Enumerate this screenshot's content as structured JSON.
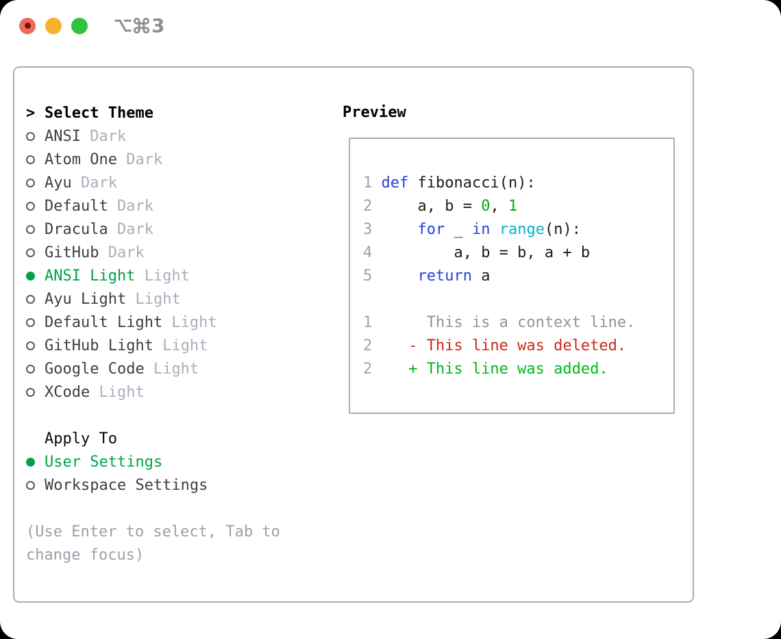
{
  "titlebar": {
    "shortcut_symbols": [
      "option",
      "command"
    ],
    "shortcut_number": "3"
  },
  "menu": {
    "header": {
      "marker": ">",
      "label": "Select Theme"
    },
    "themes": [
      {
        "name": "ANSI",
        "variant": "Dark",
        "selected": false
      },
      {
        "name": "Atom One",
        "variant": "Dark",
        "selected": false
      },
      {
        "name": "Ayu",
        "variant": "Dark",
        "selected": false
      },
      {
        "name": "Default",
        "variant": "Dark",
        "selected": false
      },
      {
        "name": "Dracula",
        "variant": "Dark",
        "selected": false
      },
      {
        "name": "GitHub",
        "variant": "Dark",
        "selected": false
      },
      {
        "name": "ANSI Light",
        "variant": "Light",
        "selected": true
      },
      {
        "name": "Ayu Light",
        "variant": "Light",
        "selected": false
      },
      {
        "name": "Default Light",
        "variant": "Light",
        "selected": false
      },
      {
        "name": "GitHub Light",
        "variant": "Light",
        "selected": false
      },
      {
        "name": "Google Code",
        "variant": "Light",
        "selected": false
      },
      {
        "name": "XCode",
        "variant": "Light",
        "selected": false
      }
    ],
    "apply_to": {
      "label": "Apply To",
      "options": [
        {
          "name": "User Settings",
          "selected": true
        },
        {
          "name": "Workspace Settings",
          "selected": false
        }
      ]
    },
    "help_lines": [
      "(Use Enter to select, Tab to",
      "change focus)"
    ]
  },
  "preview": {
    "title": "Preview",
    "code_lines": [
      {
        "num": "1",
        "tokens": [
          [
            " ",
            "fg"
          ],
          [
            "def",
            "kw"
          ],
          [
            " fibonacci(n):",
            "fg"
          ]
        ]
      },
      {
        "num": "2",
        "tokens": [
          [
            "     a, b = ",
            "fg"
          ],
          [
            "0",
            "num"
          ],
          [
            ", ",
            "fg"
          ],
          [
            "1",
            "num"
          ]
        ]
      },
      {
        "num": "3",
        "tokens": [
          [
            "     ",
            "fg"
          ],
          [
            "for",
            "kw"
          ],
          [
            " _ ",
            "fg"
          ],
          [
            "in",
            "kw"
          ],
          [
            " ",
            "fg"
          ],
          [
            "range",
            "fn"
          ],
          [
            "(n):",
            "fg"
          ]
        ]
      },
      {
        "num": "4",
        "tokens": [
          [
            "         a, b = b, a + b",
            "fg"
          ]
        ]
      },
      {
        "num": "5",
        "tokens": [
          [
            "     ",
            "fg"
          ],
          [
            "return",
            "kw"
          ],
          [
            " a",
            "fg"
          ]
        ]
      }
    ],
    "diff_lines": [
      {
        "num": "1",
        "tokens": [
          [
            "      This is a context line.",
            "ctx"
          ]
        ]
      },
      {
        "num": "2",
        "tokens": [
          [
            "    - This line was deleted.",
            "del"
          ]
        ]
      },
      {
        "num": "2",
        "tokens": [
          [
            "    + This line was added.",
            "add"
          ]
        ]
      }
    ]
  },
  "colors": {
    "accent_green": "#00a248",
    "keyword_blue": "#2441dd",
    "function_cyan": "#00b5c8",
    "number_green": "#00a81a",
    "diff_red": "#c9281b",
    "diff_add_green": "#00b81c",
    "muted_gray": "#a6afb9",
    "border_gray": "#a7afba"
  }
}
